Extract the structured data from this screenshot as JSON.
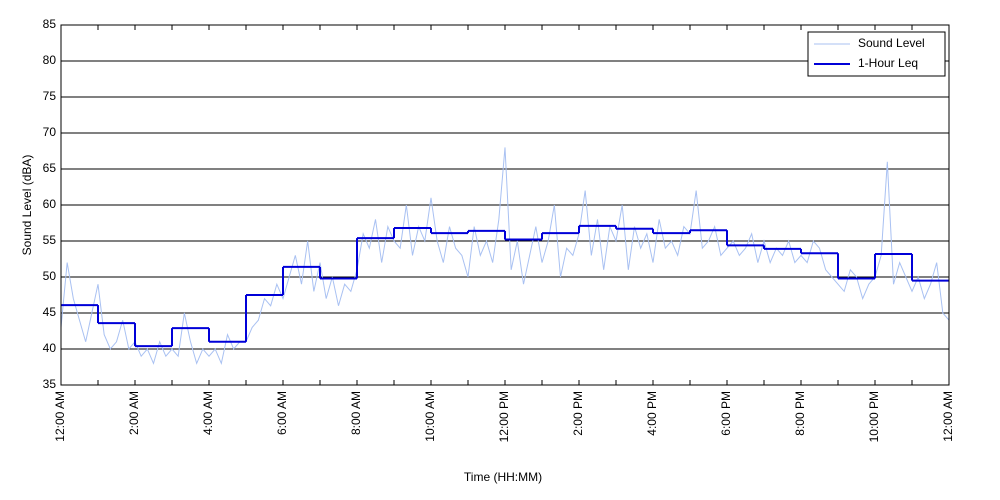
{
  "chart_data": {
    "type": "line",
    "xlabel": "Time (HH:MM)",
    "ylabel": "Sound Level (dBA)",
    "xlim": [
      0,
      1440
    ],
    "ylim": [
      35,
      85
    ],
    "xticks": [
      {
        "value": 0,
        "label": "12:00 AM"
      },
      {
        "value": 120,
        "label": "2:00 AM"
      },
      {
        "value": 240,
        "label": "4:00 AM"
      },
      {
        "value": 360,
        "label": "6:00 AM"
      },
      {
        "value": 480,
        "label": "8:00 AM"
      },
      {
        "value": 600,
        "label": "10:00 AM"
      },
      {
        "value": 720,
        "label": "12:00 PM"
      },
      {
        "value": 840,
        "label": "2:00 PM"
      },
      {
        "value": 960,
        "label": "4:00 PM"
      },
      {
        "value": 1080,
        "label": "6:00 PM"
      },
      {
        "value": 1200,
        "label": "8:00 PM"
      },
      {
        "value": 1320,
        "label": "10:00 PM"
      },
      {
        "value": 1440,
        "label": "12:00 AM"
      }
    ],
    "xminor_ticks": [
      60,
      180,
      300,
      420,
      540,
      660,
      780,
      900,
      1020,
      1140,
      1260,
      1380
    ],
    "yticks": [
      35,
      40,
      45,
      50,
      55,
      60,
      65,
      70,
      75,
      80,
      85
    ],
    "grid": true,
    "legend": "upper right",
    "series": [
      {
        "name": "Sound Level",
        "color": "#a9c1f2",
        "step": 10,
        "values": [
          43,
          52,
          47,
          44,
          41,
          45,
          49,
          42,
          40,
          41,
          44,
          40,
          41,
          39,
          40,
          38,
          41,
          39,
          40,
          39,
          45,
          41,
          38,
          40,
          39,
          40,
          38,
          42,
          40,
          41,
          41,
          43,
          44,
          47,
          46,
          49,
          47,
          50,
          53,
          49,
          55,
          48,
          52,
          47,
          50,
          46,
          49,
          48,
          51,
          56,
          54,
          58,
          52,
          57,
          55,
          54,
          60,
          53,
          57,
          55,
          61,
          55,
          52,
          57,
          54,
          53,
          50,
          57,
          53,
          55,
          52,
          58,
          68,
          51,
          55,
          49,
          53,
          57,
          52,
          55,
          60,
          50,
          54,
          53,
          56,
          62,
          53,
          58,
          51,
          57,
          55,
          60,
          51,
          57,
          54,
          56,
          52,
          58,
          54,
          55,
          53,
          57,
          56,
          62,
          54,
          55,
          57,
          53,
          54,
          55,
          53,
          54,
          56,
          52,
          55,
          52,
          54,
          53,
          55,
          52,
          53,
          52,
          55,
          54,
          51,
          50,
          49,
          48,
          51,
          50,
          47,
          49,
          50,
          53,
          66,
          49,
          52,
          50,
          48,
          50,
          47,
          49,
          52,
          45,
          44
        ]
      },
      {
        "name": "1-Hour Leq",
        "color": "#0000d8",
        "step": 60,
        "values": [
          46.1,
          43.6,
          40.4,
          42.9,
          41.0,
          47.5,
          51.4,
          49.8,
          55.4,
          56.8,
          56.1,
          56.4,
          55.2,
          56.1,
          57.1,
          56.7,
          56.1,
          56.5,
          54.4,
          53.9,
          53.3,
          49.8,
          53.2,
          49.5
        ]
      }
    ]
  }
}
